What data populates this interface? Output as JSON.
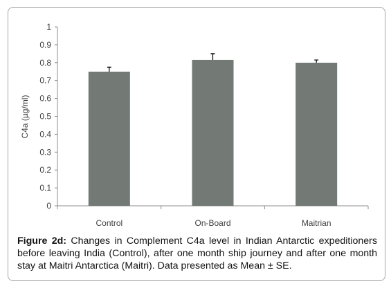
{
  "chart_data": {
    "type": "bar",
    "categories": [
      "Control",
      "On-Board",
      "Maitrian"
    ],
    "values": [
      0.75,
      0.815,
      0.8
    ],
    "error": [
      0.025,
      0.035,
      0.015
    ],
    "ylabel": "C4a (µg/ml)",
    "xlabel": "",
    "ylim": [
      0,
      1
    ],
    "yticks": [
      "0",
      "0.1",
      "0.2",
      "0.3",
      "0.4",
      "0.5",
      "0.6",
      "0.7",
      "0.8",
      "0.9",
      "1"
    ],
    "grid": false,
    "legend": "none",
    "bar_color": "#737a76",
    "axis_color": "#8c8c8c"
  },
  "caption": {
    "label": "Figure 2d:",
    "text": " Changes in Complement C4a level in Indian Antarctic expeditioners before leaving India (Control), after one month ship journey and after one month stay at Maitri Antarctica (Maitri). Data presented as Mean ± SE."
  }
}
